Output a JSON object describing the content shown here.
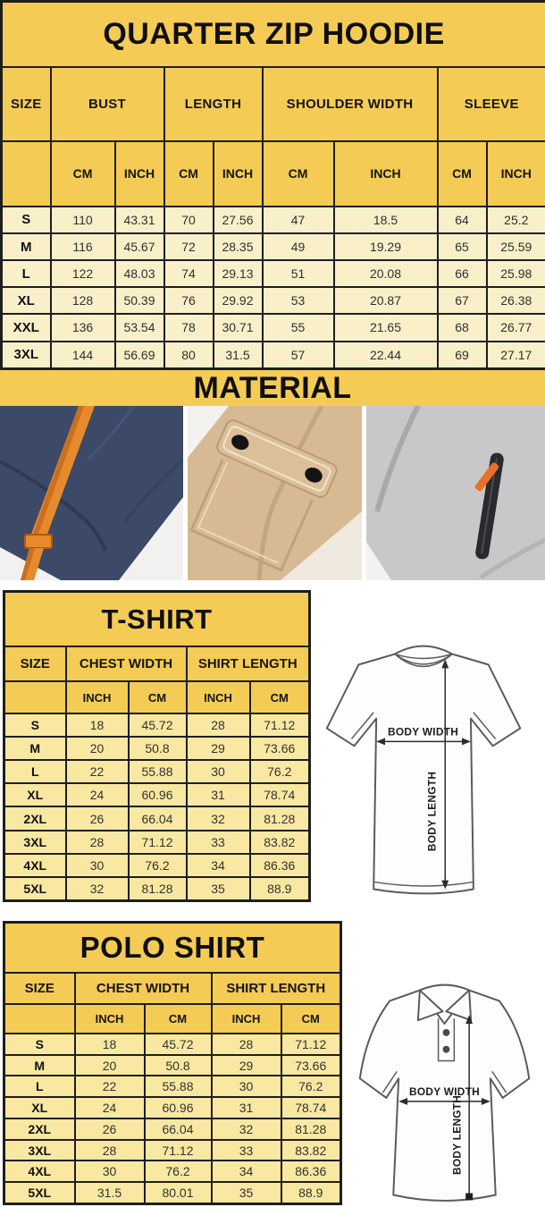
{
  "hoodie": {
    "title": "QUARTER ZIP HOODIE",
    "col_groups": [
      "SIZE",
      "BUST",
      "LENGTH",
      "SHOULDER WIDTH",
      "SLEEVE"
    ],
    "sub_headers": [
      "CM",
      "INCH",
      "CM",
      "INCH",
      "CM",
      "INCH",
      "CM",
      "INCH"
    ],
    "rows": [
      [
        "S",
        "110",
        "43.31",
        "70",
        "27.56",
        "47",
        "18.5",
        "64",
        "25.2"
      ],
      [
        "M",
        "116",
        "45.67",
        "72",
        "28.35",
        "49",
        "19.29",
        "65",
        "25.59"
      ],
      [
        "L",
        "122",
        "48.03",
        "74",
        "29.13",
        "51",
        "20.08",
        "66",
        "25.98"
      ],
      [
        "XL",
        "128",
        "50.39",
        "76",
        "29.92",
        "53",
        "20.87",
        "67",
        "26.38"
      ],
      [
        "XXL",
        "136",
        "53.54",
        "78",
        "30.71",
        "55",
        "21.65",
        "68",
        "26.77"
      ],
      [
        "3XL",
        "144",
        "56.69",
        "80",
        "31.5",
        "57",
        "22.44",
        "69",
        "27.17"
      ]
    ]
  },
  "material": {
    "title": "MATERIAL",
    "photos": [
      "navy-fleece-with-orange-drawstring",
      "khaki-fabric-snap-flap-pocket",
      "gray-fleece-zipper-pocket-orange-pull"
    ]
  },
  "tshirt": {
    "title": "T-SHIRT",
    "col_groups": [
      "SIZE",
      "CHEST WIDTH",
      "SHIRT LENGTH"
    ],
    "sub_headers": [
      "INCH",
      "CM",
      "INCH",
      "CM"
    ],
    "rows": [
      [
        "S",
        "18",
        "45.72",
        "28",
        "71.12"
      ],
      [
        "M",
        "20",
        "50.8",
        "29",
        "73.66"
      ],
      [
        "L",
        "22",
        "55.88",
        "30",
        "76.2"
      ],
      [
        "XL",
        "24",
        "60.96",
        "31",
        "78.74"
      ],
      [
        "2XL",
        "26",
        "66.04",
        "32",
        "81.28"
      ],
      [
        "3XL",
        "28",
        "71.12",
        "33",
        "83.82"
      ],
      [
        "4XL",
        "30",
        "76.2",
        "34",
        "86.36"
      ],
      [
        "5XL",
        "32",
        "81.28",
        "35",
        "88.9"
      ]
    ],
    "diagram": {
      "width_label": "BODY WIDTH",
      "length_label": "BODY LENGTH"
    }
  },
  "polo": {
    "title": "POLO SHIRT",
    "col_groups": [
      "SIZE",
      "CHEST WIDTH",
      "SHIRT LENGTH"
    ],
    "sub_headers": [
      "INCH",
      "CM",
      "INCH",
      "CM"
    ],
    "rows": [
      [
        "S",
        "18",
        "45.72",
        "28",
        "71.12"
      ],
      [
        "M",
        "20",
        "50.8",
        "29",
        "73.66"
      ],
      [
        "L",
        "22",
        "55.88",
        "30",
        "76.2"
      ],
      [
        "XL",
        "24",
        "60.96",
        "31",
        "78.74"
      ],
      [
        "2XL",
        "26",
        "66.04",
        "32",
        "81.28"
      ],
      [
        "3XL",
        "28",
        "71.12",
        "33",
        "83.82"
      ],
      [
        "4XL",
        "30",
        "76.2",
        "34",
        "86.36"
      ],
      [
        "5XL",
        "31.5",
        "80.01",
        "35",
        "88.9"
      ]
    ],
    "diagram": {
      "width_label": "BODY WIDTH",
      "length_label": "BODY LENGTH"
    }
  },
  "colors": {
    "header_yellow": "#f4cb55",
    "hoodie_row_cream": "#f9f0ca",
    "shirt_row_yellow": "#f8e8a2",
    "border_dark": "#1e1e1e",
    "navy_fabric": "#3c4a67",
    "orange_accent": "#e78a2e",
    "khaki_fabric": "#d7ba93",
    "gray_fabric": "#c8c8cb"
  }
}
